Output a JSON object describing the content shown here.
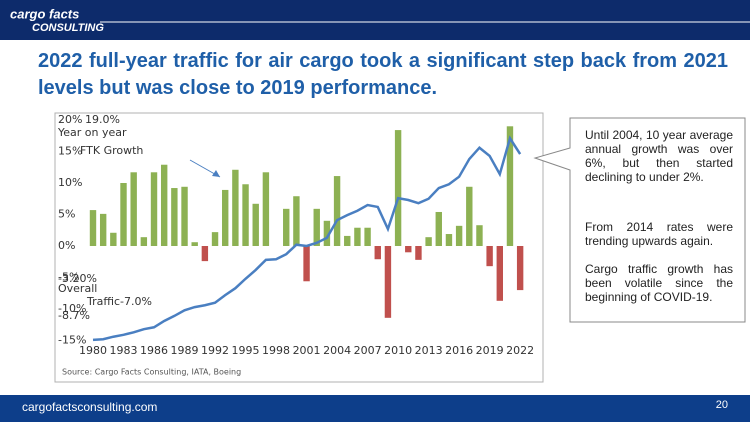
{
  "header": {
    "logo_line1": "cargo facts",
    "logo_line2": "CONSULTING"
  },
  "title": "2022 full-year traffic for air cargo took a significant step back from 2021 levels but was close to 2019 performance.",
  "chart_data": {
    "type": "bar",
    "categories": [
      "1980",
      null,
      null,
      "1983",
      null,
      null,
      "1986",
      null,
      null,
      "1989",
      null,
      null,
      "1992",
      null,
      null,
      "1995",
      null,
      null,
      "1998",
      null,
      null,
      "2001",
      null,
      null,
      "2004",
      null,
      null,
      "2007",
      null,
      null,
      "2010",
      null,
      null,
      "2013",
      null,
      null,
      "2016",
      null,
      null,
      "2019",
      null,
      null,
      "2022"
    ],
    "series": [
      {
        "type": "bar",
        "color": "#8db153",
        "negative_color": "#c0504d",
        "values": [
          5.7,
          5.1,
          2.1,
          10.0,
          11.7,
          1.4,
          11.7,
          12.9,
          9.2,
          9.4,
          0.6,
          -2.4,
          2.2,
          8.9,
          12.1,
          9.8,
          6.7,
          11.7,
          0,
          5.9,
          7.9,
          -5.6,
          5.9,
          4.0,
          11.1,
          1.6,
          2.9,
          2.9,
          -2.1,
          -11.4,
          18.4,
          -1.0,
          -2.2,
          1.4,
          5.4,
          1.9,
          3.2,
          9.4,
          3.3,
          -3.2,
          -8.7,
          19.0,
          -7.0
        ]
      },
      {
        "type": "line",
        "color": "#4a7fc1",
        "values": [
          -14.9,
          -14.8,
          -14.4,
          -14.1,
          -13.7,
          -13.2,
          -12.9,
          -11.9,
          -11.1,
          -10.2,
          -9.7,
          -9.4,
          -9.0,
          -7.8,
          -6.7,
          -5.2,
          -3.8,
          -2.2,
          -2.1,
          -1.3,
          0.2,
          0.0,
          0.5,
          1.3,
          4.1,
          4.9,
          5.6,
          6.5,
          6.2,
          2.7,
          7.6,
          7.3,
          6.8,
          7.5,
          9.2,
          9.8,
          11.0,
          13.8,
          15.6,
          14.3,
          11.4,
          17.1,
          14.6
        ]
      }
    ],
    "ylim": [
      -16,
      20
    ],
    "yticks": [
      {
        "value": 20,
        "label": "20%"
      },
      {
        "value": 15,
        "label": "15%"
      },
      {
        "value": 10,
        "label": "10%"
      },
      {
        "value": 5,
        "label": "5%"
      },
      {
        "value": 0,
        "label": "0%"
      },
      {
        "value": -5,
        "label": "-5%"
      },
      {
        "value": -10,
        "label": "-10%"
      },
      {
        "value": -15,
        "label": "-15%"
      }
    ],
    "annotations": [
      "19.0%",
      "Year on year",
      "FTK Growth",
      "-3.20%",
      "Overall",
      "Traffic",
      "-7.0%",
      "-8.7%"
    ],
    "source": "Source: Cargo Facts Consulting, IATA, Boeing"
  },
  "callout": [
    "Until 2004, 10 year average annual growth was over 6%, but then started declining to under 2%.",
    "From 2014 rates were trending upwards again.",
    "Cargo traffic growth has been volatile since the beginning of COVID-19."
  ],
  "footer": {
    "url": "cargofactsconsulting.com",
    "page": "20"
  }
}
